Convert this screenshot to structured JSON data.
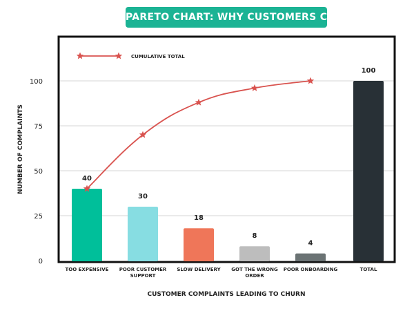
{
  "title": "PARETO CHART: WHY CUSTOMERS CHURN",
  "chart_data": {
    "type": "bar",
    "title": "PARETO CHART: WHY CUSTOMERS CHURN",
    "xlabel": "CUSTOMER COMPLAINTS LEADING TO CHURN",
    "ylabel": "NUMBER OF COMPLAINTS",
    "ylim": [
      0,
      100
    ],
    "yticks": [
      "0",
      "25",
      "50",
      "75",
      "100"
    ],
    "grid": true,
    "legend": {
      "position": "top-left",
      "label": "CUMULATIVE TOTAL"
    },
    "categories": [
      [
        "TOO EXPENSIVE"
      ],
      [
        "POOR CUSTOMER",
        "SUPPORT"
      ],
      [
        "SLOW DELIVERY"
      ],
      [
        "GOT THE WRONG",
        "ORDER"
      ],
      [
        "POOR ONBOARDING"
      ],
      [
        "TOTAL"
      ]
    ],
    "values": [
      40,
      30,
      18,
      8,
      4,
      100
    ],
    "value_labels": [
      "40",
      "30",
      "18",
      "8",
      "4",
      "100"
    ],
    "colors": [
      "#00bf9a",
      "#87dde2",
      "#ef7659",
      "#bdbdbd",
      "#6b7374",
      "#283036"
    ],
    "cumulative": {
      "name": "CUMULATIVE TOTAL",
      "values": [
        40,
        70,
        88,
        96,
        100
      ],
      "color": "#d9534f"
    }
  }
}
